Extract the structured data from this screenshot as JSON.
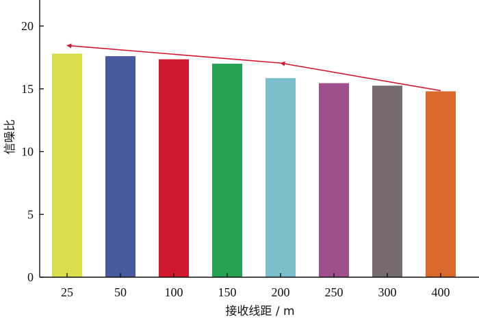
{
  "chart_data": {
    "type": "bar",
    "categories": [
      "25",
      "50",
      "100",
      "150",
      "200",
      "250",
      "300",
      "400"
    ],
    "values": [
      17.8,
      17.6,
      17.35,
      17.0,
      15.85,
      15.45,
      15.25,
      14.8
    ],
    "colors": [
      "#d9df4a",
      "#485a9e",
      "#d0182e",
      "#27a253",
      "#7bbfcc",
      "#a04f8d",
      "#776b70",
      "#d96a2b"
    ],
    "xlabel": "接收线距 / m",
    "ylabel": "信噪比",
    "ylim": [
      0,
      22
    ],
    "yticks": [
      0,
      5,
      10,
      15,
      20
    ],
    "grid": false,
    "annotations": [
      {
        "type": "arrow",
        "color": "#d0182e",
        "description": "trend arrows from 400 m bar to 200 m to 25 m",
        "path": [
          [
            7,
            14.85
          ],
          [
            4,
            17.05
          ],
          [
            0,
            18.45
          ]
        ]
      }
    ]
  }
}
